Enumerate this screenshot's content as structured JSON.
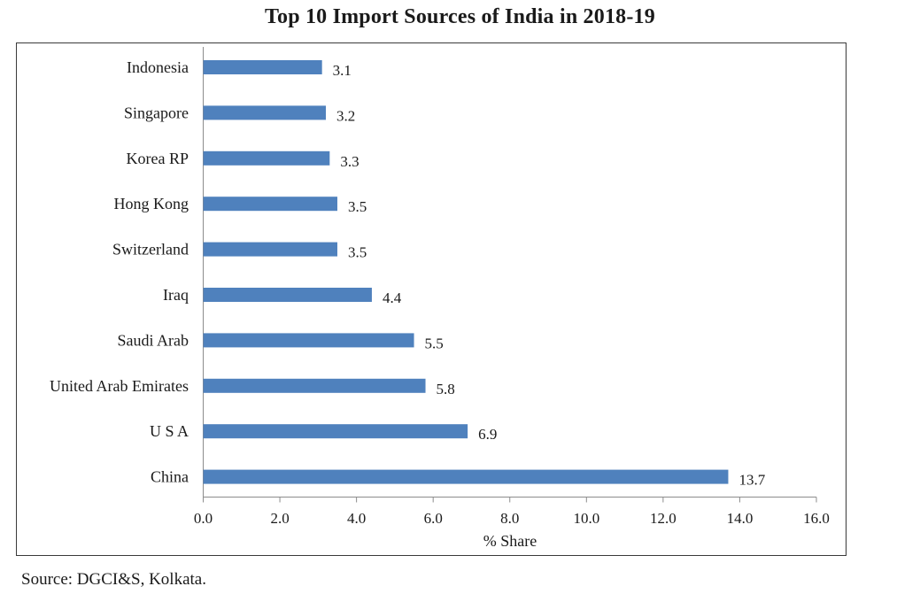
{
  "chart_data": {
    "type": "bar",
    "orientation": "horizontal",
    "title": "Top 10 Import Sources of India in 2018-19",
    "categories": [
      "Indonesia",
      "Singapore",
      "Korea RP",
      "Hong Kong",
      "Switzerland",
      "Iraq",
      "Saudi Arab",
      "United Arab Emirates",
      "U S A",
      "China"
    ],
    "values": [
      3.1,
      3.2,
      3.3,
      3.5,
      3.5,
      4.4,
      5.5,
      5.8,
      6.9,
      13.7
    ],
    "value_labels": [
      "3.1",
      "3.2",
      "3.3",
      "3.5",
      "3.5",
      "4.4",
      "5.5",
      "5.8",
      "6.9",
      "13.7"
    ],
    "xlabel": "% Share",
    "ylabel": "",
    "xlim": [
      0,
      16
    ],
    "xticks": [
      "0.0",
      "2.0",
      "4.0",
      "6.0",
      "8.0",
      "10.0",
      "12.0",
      "14.0",
      "16.0"
    ],
    "grid": false,
    "legend": "none",
    "bar_color": "#4f81bd"
  },
  "source_note": "Source: DGCI&S, Kolkata."
}
